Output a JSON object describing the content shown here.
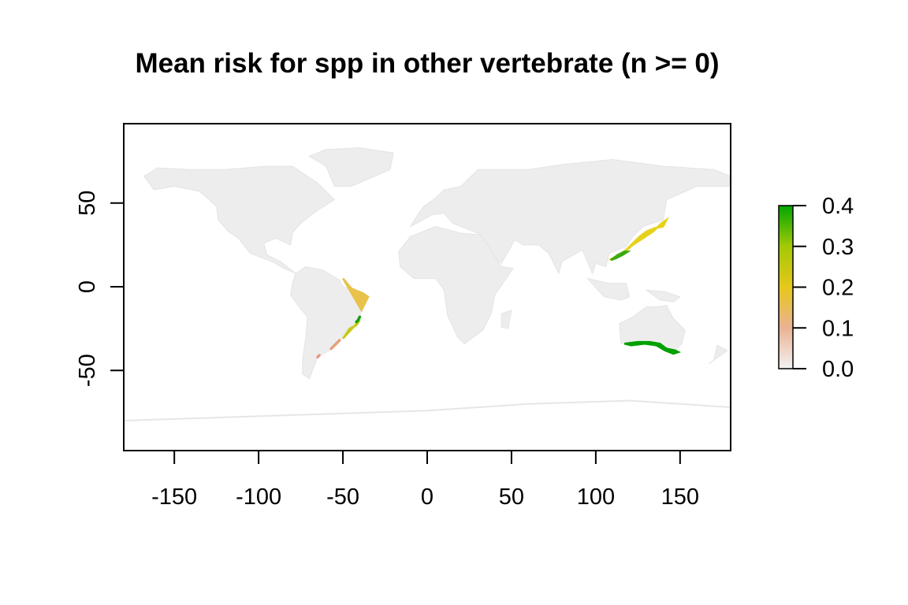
{
  "chart_data": {
    "type": "heatmap",
    "title": "Mean risk for spp in other vertebrate (n >= 0)",
    "xlabel": "",
    "ylabel": "",
    "xlim": [
      -180,
      180
    ],
    "ylim": [
      -96,
      97
    ],
    "x_ticks": [
      -150,
      -100,
      -50,
      0,
      50,
      100,
      150
    ],
    "y_ticks": [
      50,
      0,
      -50
    ],
    "grid": false,
    "legend": {
      "placement": "right",
      "min": 0.0,
      "max": 0.4,
      "ticks": [
        "0.0",
        "0.1",
        "0.2",
        "0.3",
        "0.4"
      ],
      "colors": [
        "#f2f2f2",
        "#ebb294",
        "#e6c81a",
        "#a3c906",
        "#00a600"
      ]
    },
    "regions": [
      {
        "name": "East Asia coast",
        "value": 0.22,
        "color": "#e6d21a",
        "points": [
          [
            108,
            16
          ],
          [
            112,
            18
          ],
          [
            118,
            22
          ],
          [
            122,
            26
          ],
          [
            126,
            30
          ],
          [
            130,
            33
          ],
          [
            135,
            35
          ],
          [
            140,
            36
          ],
          [
            142,
            40
          ],
          [
            139,
            38
          ],
          [
            134,
            33
          ],
          [
            128,
            29
          ],
          [
            122,
            25
          ],
          [
            116,
            20
          ],
          [
            110,
            17
          ]
        ]
      },
      {
        "name": "South China",
        "value": 0.34,
        "color": "#3aaa10",
        "points": [
          [
            109,
            16
          ],
          [
            112,
            17
          ],
          [
            116,
            19
          ],
          [
            119,
            21
          ],
          [
            117,
            21
          ],
          [
            113,
            19
          ]
        ]
      },
      {
        "name": "South Australia coast",
        "value": 0.4,
        "color": "#00a000",
        "points": [
          [
            117,
            -34
          ],
          [
            125,
            -33
          ],
          [
            132,
            -33
          ],
          [
            138,
            -34
          ],
          [
            142,
            -37
          ],
          [
            147,
            -38
          ],
          [
            149,
            -39
          ],
          [
            146,
            -40
          ],
          [
            141,
            -38
          ],
          [
            136,
            -35
          ],
          [
            129,
            -34
          ],
          [
            121,
            -35
          ]
        ]
      },
      {
        "name": "Brazil coast north",
        "value": 0.15,
        "color": "#e8c24a",
        "points": [
          [
            -50,
            5
          ],
          [
            -45,
            -1
          ],
          [
            -38,
            -4
          ],
          [
            -35,
            -6
          ],
          [
            -37,
            -10
          ],
          [
            -39,
            -14
          ]
        ]
      },
      {
        "name": "Brazil coast south",
        "value": 0.25,
        "color": "#c9c816",
        "points": [
          [
            -40,
            -20
          ],
          [
            -42,
            -23
          ],
          [
            -46,
            -25
          ],
          [
            -48,
            -28
          ],
          [
            -50,
            -31
          ]
        ]
      },
      {
        "name": "Brazil southeast patch",
        "value": 0.38,
        "color": "#12a20a",
        "points": [
          [
            -40,
            -18
          ],
          [
            -41,
            -20
          ],
          [
            -42,
            -21
          ]
        ]
      },
      {
        "name": "Rio de la Plata",
        "value": 0.1,
        "color": "#e7a07c",
        "points": [
          [
            -52,
            -32
          ],
          [
            -55,
            -35
          ],
          [
            -57,
            -37
          ]
        ]
      },
      {
        "name": "Patagonia spot",
        "value": 0.08,
        "color": "#e69a83",
        "points": [
          [
            -64,
            -41
          ],
          [
            -65,
            -42
          ]
        ]
      }
    ]
  }
}
